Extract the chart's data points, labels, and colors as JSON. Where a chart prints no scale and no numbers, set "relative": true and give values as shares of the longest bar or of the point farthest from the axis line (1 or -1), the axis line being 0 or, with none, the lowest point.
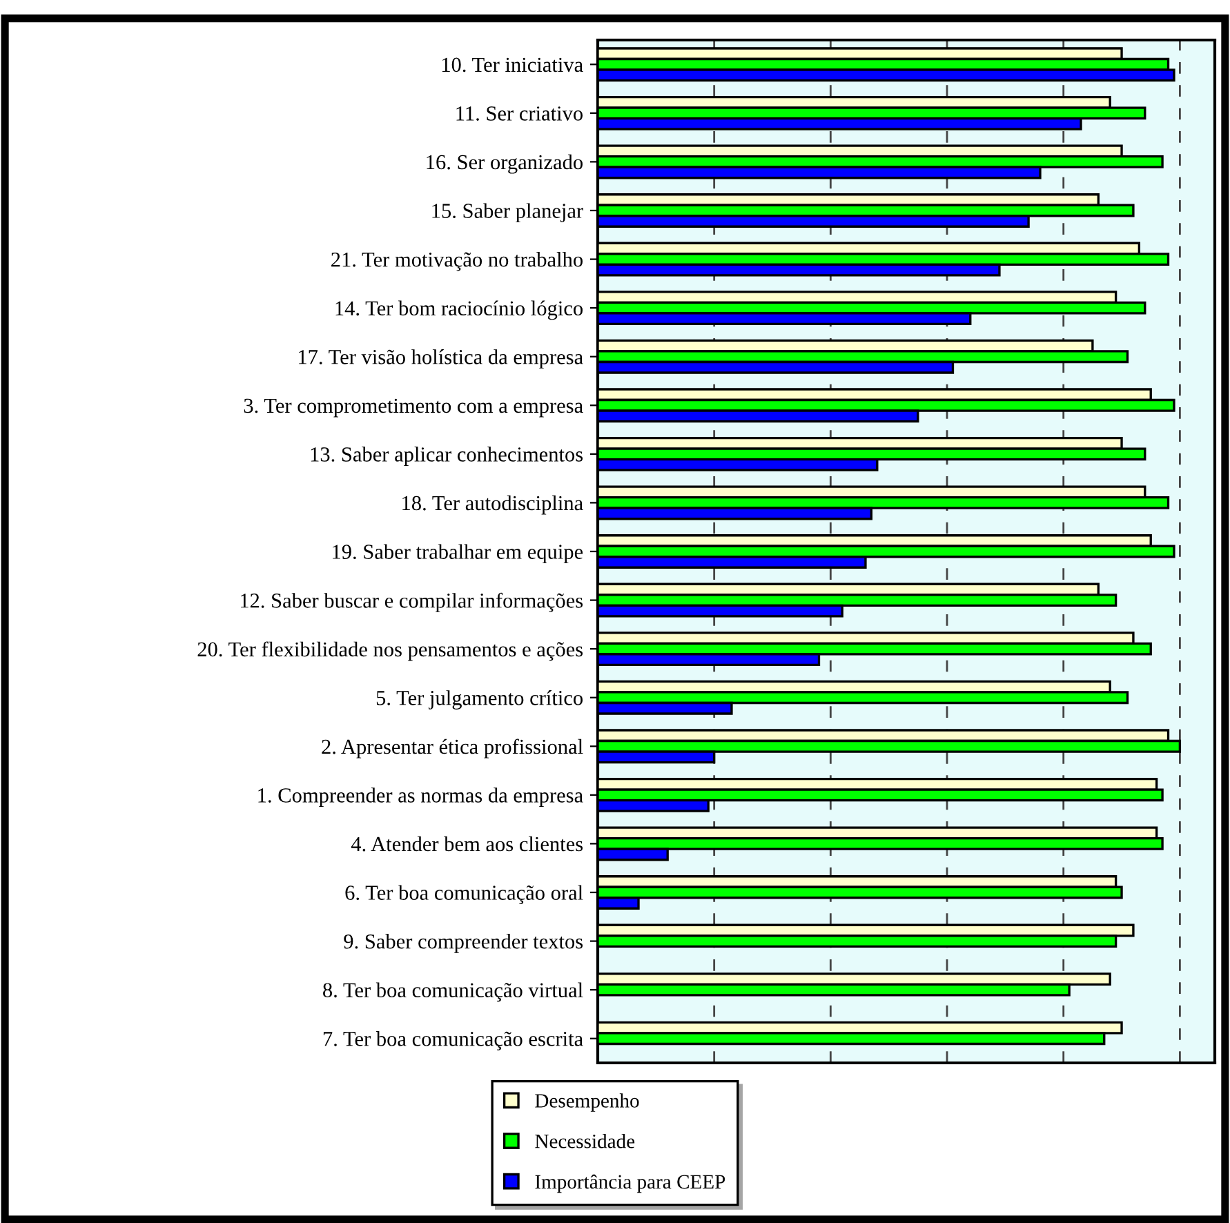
{
  "chart_data": {
    "type": "bar",
    "orientation": "horizontal",
    "relative": true,
    "grid": "x",
    "legend": "bottom",
    "categories": [
      "10. Ter iniciativa",
      "11. Ser criativo",
      "16. Ser organizado",
      "15. Saber planejar",
      "21. Ter motivação no trabalho",
      "14. Ter bom raciocínio lógico",
      "17. Ter visão holística da empresa",
      "3. Ter comprometimento com a empresa",
      "13. Saber aplicar conhecimentos",
      "18. Ter autodisciplina",
      "19. Saber trabalhar em equipe",
      "12. Saber buscar e compilar informações",
      "20. Ter flexibilidade nos pensamentos e ações",
      "5. Ter julgamento crítico",
      "2. Apresentar ética profissional",
      "1. Compreender as normas da empresa",
      "4. Atender bem aos clientes",
      "6. Ter boa comunicação oral",
      "9. Saber compreender textos",
      "8. Ter boa comunicação virtual",
      "7. Ter boa comunicação escrita"
    ],
    "series": [
      {
        "name": "Desempenho",
        "color": "#ffffcc",
        "values": [
          0.9,
          0.88,
          0.9,
          0.86,
          0.93,
          0.89,
          0.85,
          0.95,
          0.9,
          0.94,
          0.95,
          0.86,
          0.92,
          0.88,
          0.98,
          0.96,
          0.96,
          0.89,
          0.92,
          0.88,
          0.9
        ]
      },
      {
        "name": "Necessidade",
        "color": "#00ff00",
        "values": [
          0.98,
          0.94,
          0.97,
          0.92,
          0.98,
          0.94,
          0.91,
          0.99,
          0.94,
          0.98,
          0.99,
          0.89,
          0.95,
          0.91,
          1.0,
          0.97,
          0.97,
          0.9,
          0.89,
          0.81,
          0.87
        ]
      },
      {
        "name": "Importância para CEEP",
        "color": "#0000ff",
        "values": [
          0.99,
          0.83,
          0.76,
          0.74,
          0.69,
          0.64,
          0.61,
          0.55,
          0.48,
          0.47,
          0.46,
          0.42,
          0.38,
          0.23,
          0.2,
          0.19,
          0.12,
          0.07,
          null,
          null,
          null
        ]
      }
    ]
  }
}
